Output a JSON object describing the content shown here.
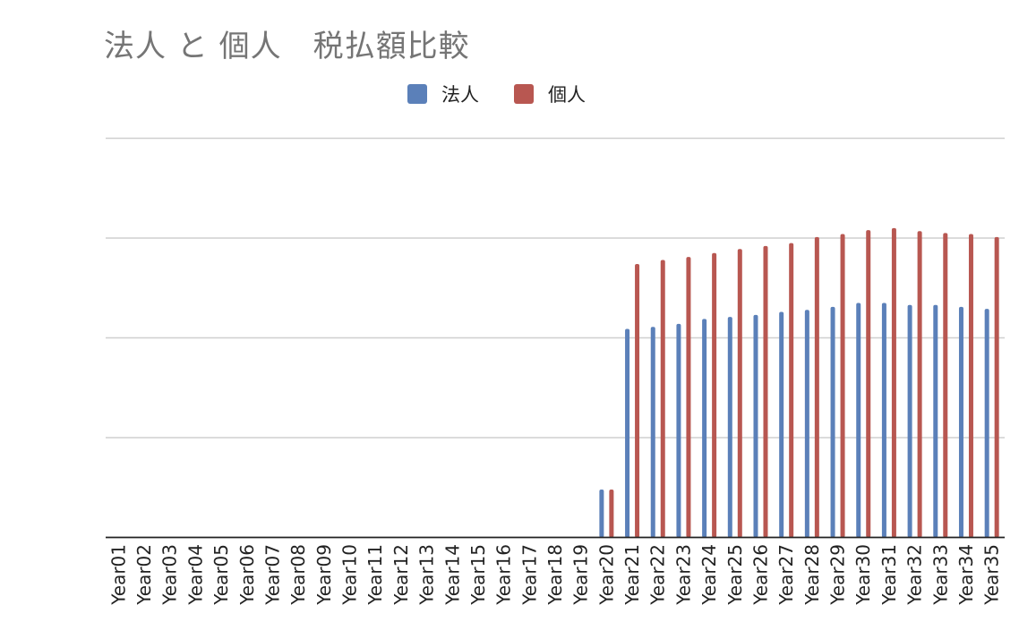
{
  "chart_data": {
    "type": "bar",
    "title": "法人 と 個人　税払額比較",
    "xlabel": "",
    "ylabel": "",
    "categories": [
      "Year01",
      "Year02",
      "Year03",
      "Year04",
      "Year05",
      "Year06",
      "Year07",
      "Year08",
      "Year09",
      "Year10",
      "Year11",
      "Year12",
      "Year13",
      "Year14",
      "Year15",
      "Year16",
      "Year17",
      "Year18",
      "Year19",
      "Year20",
      "Year21",
      "Year22",
      "Year23",
      "Year24",
      "Year25",
      "Year26",
      "Year27",
      "Year28",
      "Year29",
      "Year30",
      "Year31",
      "Year32",
      "Year33",
      "Year34",
      "Year35"
    ],
    "series": [
      {
        "name": "法人",
        "color": "#5b80b9",
        "values": [
          0,
          0,
          0,
          0,
          0,
          0,
          0,
          0,
          0,
          0,
          0,
          0,
          0,
          0,
          0,
          0,
          0,
          0,
          0,
          0.48,
          2.09,
          2.11,
          2.14,
          2.19,
          2.21,
          2.23,
          2.26,
          2.28,
          2.31,
          2.35,
          2.35,
          2.33,
          2.33,
          2.31,
          2.29
        ]
      },
      {
        "name": "個人",
        "color": "#b85751",
        "values": [
          0,
          0,
          0,
          0,
          0,
          0,
          0,
          0,
          0,
          0,
          0,
          0,
          0,
          0,
          0,
          0,
          0,
          0,
          0,
          0.48,
          2.74,
          2.78,
          2.81,
          2.85,
          2.89,
          2.92,
          2.95,
          3.01,
          3.04,
          3.08,
          3.1,
          3.07,
          3.05,
          3.04,
          3.01
        ]
      }
    ],
    "ylim": [
      0,
      4
    ],
    "grid": true,
    "legend_position": "top-center"
  }
}
